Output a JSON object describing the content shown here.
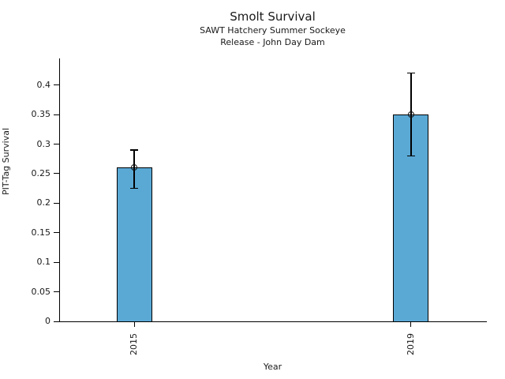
{
  "chart_data": {
    "type": "bar",
    "title": "Smolt Survival",
    "subtitle": [
      "SAWT Hatchery Summer Sockeye",
      "Release - John Day Dam"
    ],
    "xlabel": "Year",
    "ylabel": "PIT-Tag Survival",
    "categories": [
      "2015",
      "2019"
    ],
    "values": [
      0.26,
      0.35
    ],
    "error_low": [
      0.225,
      0.28
    ],
    "error_high": [
      0.29,
      0.42
    ],
    "yticks": [
      0,
      0.05,
      0.1,
      0.15,
      0.2,
      0.25,
      0.3,
      0.35,
      0.4
    ],
    "ytick_labels": [
      "0",
      "0.05",
      "0.1",
      "0.15",
      "0.2",
      "0.25",
      "0.3",
      "0.35",
      "0.4"
    ],
    "ylim": [
      0,
      0.445
    ],
    "grid": false,
    "legend": null,
    "marker": "open-circle",
    "colors": {
      "bar_fill": "#5AA9D5",
      "bar_edge": "#000000",
      "errorbar": "#000000",
      "axis": "#000000",
      "text": "#1a1a1a",
      "background": "#ffffff"
    }
  }
}
